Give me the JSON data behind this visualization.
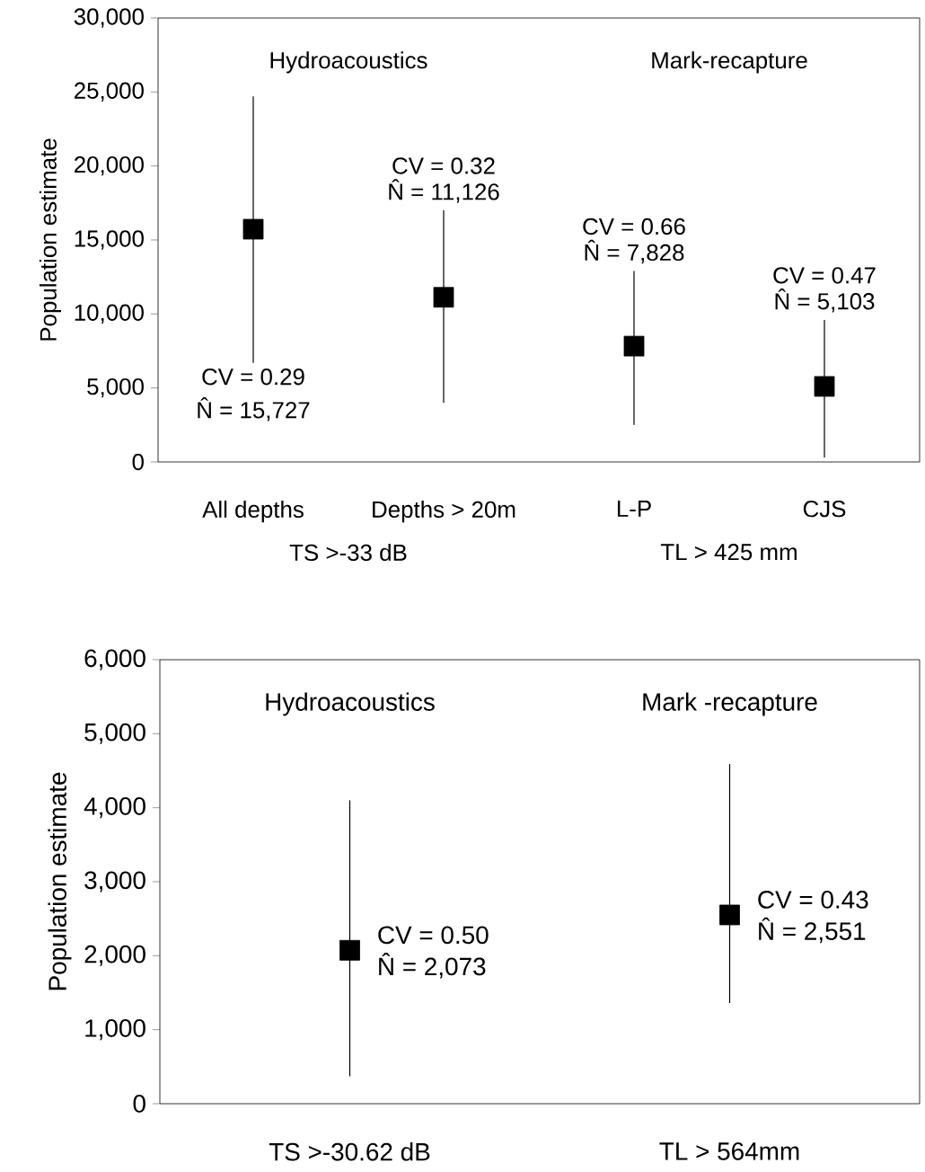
{
  "chart_data": [
    {
      "type": "scatter",
      "ylabel": "Population estimate",
      "categories": [
        "All depths",
        "Depths > 20m",
        "L-P",
        "CJS"
      ],
      "series": [
        {
          "color": "#000000",
          "values": [
            15727,
            11126,
            7828,
            5103
          ],
          "errors": [
            [
              6700,
              24700
            ],
            [
              4000,
              17000
            ],
            [
              2500,
              12900
            ],
            [
              300,
              9600
            ]
          ]
        }
      ],
      "ylim": [
        0,
        30000
      ],
      "yticks": [
        0,
        {
          "value": 5000,
          "label": "5,000"
        },
        {
          "value": 10000,
          "label": "10,000"
        },
        {
          "value": 15000,
          "label": "15,000"
        },
        {
          "value": 20000,
          "label": "20,000"
        },
        {
          "value": 25000,
          "label": "25,000"
        },
        {
          "value": 30000,
          "label": "30,000"
        }
      ],
      "marker": "square",
      "annotations": [
        "Hydroacoustics",
        "Mark-recapture",
        "TS >-33 dB",
        "TL > 425 mm",
        {
          "text": "CV = 0.29",
          "x": "All depths",
          "y": 6700
        },
        {
          "text": "N̂ = 15,727",
          "x": "All depths",
          "y": 6700
        },
        {
          "text": "CV = 0.32",
          "x": "Depths > 20m",
          "y": 17000
        },
        {
          "text": "N̂ = 11,126",
          "x": "Depths > 20m",
          "y": 17000
        },
        {
          "text": "CV = 0.66",
          "x": "L-P",
          "y": 12900
        },
        {
          "text": "N̂ = 7,828",
          "x": "L-P",
          "y": 12900
        },
        {
          "text": "CV = 0.47",
          "x": "CJS",
          "y": 9600
        },
        {
          "text": "N̂ = 5,103",
          "x": "CJS",
          "y": 9600
        }
      ]
    },
    {
      "type": "scatter",
      "ylabel": "Population estimate",
      "categories": [
        "TS >-30.62 dB",
        "TL > 564mm"
      ],
      "series": [
        {
          "color": "#000000",
          "values": [
            2073,
            2551
          ],
          "errors": [
            [
              370,
              4100
            ],
            [
              1360,
              4590
            ]
          ]
        }
      ],
      "ylim": [
        0,
        6000
      ],
      "yticks": [
        0,
        {
          "value": 1000,
          "label": "1,000"
        },
        {
          "value": 2000,
          "label": "2,000"
        },
        {
          "value": 3000,
          "label": "3,000"
        },
        {
          "value": 4000,
          "label": "4,000"
        },
        {
          "value": 5000,
          "label": "5,000"
        },
        {
          "value": 6000,
          "label": "6,000"
        }
      ],
      "marker": "square",
      "annotations": [
        "Hydroacoustics",
        "Mark -recapture",
        {
          "text": "CV = 0.50",
          "x": "TS >-30.62 dB",
          "y": 2073
        },
        {
          "text": "N̂ = 2,073",
          "x": "TS >-30.62 dB",
          "y": 2073
        },
        {
          "text": "CV = 0.43",
          "x": "TL > 564mm",
          "y": 2551
        },
        {
          "text": "N̂ = 2,551",
          "x": "TL > 564mm",
          "y": 2551
        }
      ]
    }
  ]
}
